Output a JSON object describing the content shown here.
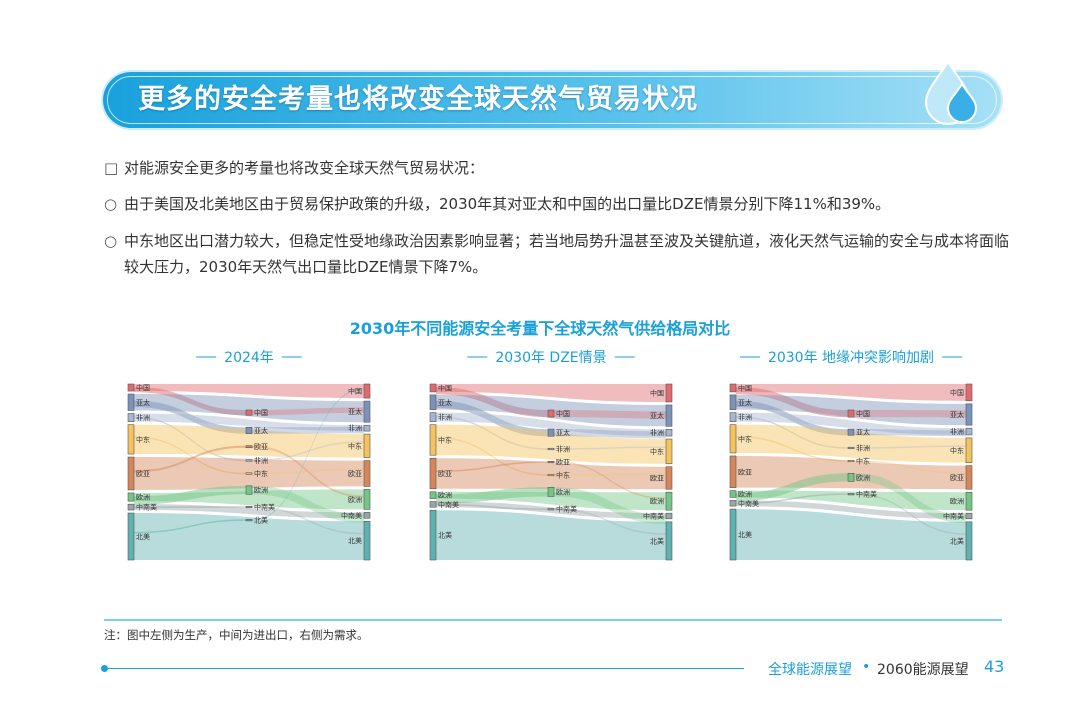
{
  "header": {
    "title": "更多的安全考量也将改变全球天然气贸易状况"
  },
  "bullets": [
    {
      "marker": "□",
      "text": "对能源安全更多的考量也将改变全球天然气贸易状况："
    },
    {
      "marker": "○",
      "text": "由于美国及北美地区由于贸易保护政策的升级，2030年其对亚太和中国的出口量比DZE情景分别下降11%和39%。"
    },
    {
      "marker": "○",
      "text": "中东地区出口潜力较大，但稳定性受地缘政治因素影响显著；若当地局势升温甚至波及关键航道，液化天然气运输的安全与成本将面临较大压力，2030年天然气出口量比DZE情景下降7%。"
    }
  ],
  "figure": {
    "title": "2030年不同能源安全考量下全球天然气供给格局对比",
    "colors": {
      "中国": "#e06a6e",
      "亚太": "#7d92b8",
      "非洲": "#a7b5d0",
      "中东": "#f4c35e",
      "欧亚": "#d5875b",
      "欧洲": "#74c586",
      "中南美": "#98a7a8",
      "北美": "#5fb2b0"
    },
    "panels": [
      {
        "title": "2024年",
        "left": [
          {
            "label": "中国",
            "value": 6
          },
          {
            "label": "亚太",
            "value": 14
          },
          {
            "label": "非洲",
            "value": 7
          },
          {
            "label": "中东",
            "value": 25
          },
          {
            "label": "欧亚",
            "value": 28
          },
          {
            "label": "欧洲",
            "value": 7
          },
          {
            "label": "中南美",
            "value": 5
          },
          {
            "label": "北美",
            "value": 40
          }
        ],
        "middle": [
          {
            "label": "中国",
            "value": 5
          },
          {
            "label": "亚太",
            "value": 6
          },
          {
            "label": "欧亚",
            "value": 2
          },
          {
            "label": "非洲",
            "value": 1
          },
          {
            "label": "中东",
            "value": 1
          },
          {
            "label": "欧洲",
            "value": 8
          },
          {
            "label": "中南美",
            "value": 1
          },
          {
            "label": "北美",
            "value": 1
          }
        ],
        "right": [
          {
            "label": "中国",
            "value": 12
          },
          {
            "label": "亚太",
            "value": 18
          },
          {
            "label": "非洲",
            "value": 5
          },
          {
            "label": "中东",
            "value": 20
          },
          {
            "label": "欧亚",
            "value": 22
          },
          {
            "label": "欧洲",
            "value": 17
          },
          {
            "label": "中南美",
            "value": 5
          },
          {
            "label": "北美",
            "value": 33
          }
        ]
      },
      {
        "title": "2030年 DZE情景",
        "left": [
          {
            "label": "中国",
            "value": 7
          },
          {
            "label": "亚太",
            "value": 13
          },
          {
            "label": "非洲",
            "value": 8
          },
          {
            "label": "中东",
            "value": 27
          },
          {
            "label": "欧亚",
            "value": 27
          },
          {
            "label": "欧洲",
            "value": 6
          },
          {
            "label": "中南美",
            "value": 5
          },
          {
            "label": "北美",
            "value": 44
          }
        ],
        "middle": [
          {
            "label": "中国",
            "value": 7
          },
          {
            "label": "亚太",
            "value": 7
          },
          {
            "label": "非洲",
            "value": 1
          },
          {
            "label": "欧亚",
            "value": 1
          },
          {
            "label": "中东",
            "value": 1
          },
          {
            "label": "欧洲",
            "value": 9
          },
          {
            "label": "中南美",
            "value": 1
          }
        ],
        "right": [
          {
            "label": "中国",
            "value": 16
          },
          {
            "label": "亚太",
            "value": 19
          },
          {
            "label": "非洲",
            "value": 6
          },
          {
            "label": "中东",
            "value": 22
          },
          {
            "label": "欧亚",
            "value": 20
          },
          {
            "label": "欧洲",
            "value": 16
          },
          {
            "label": "中南美",
            "value": 5
          },
          {
            "label": "北美",
            "value": 34
          }
        ]
      },
      {
        "title": "2030年 地缘冲突影响加剧",
        "left": [
          {
            "label": "中国",
            "value": 7
          },
          {
            "label": "亚太",
            "value": 13
          },
          {
            "label": "非洲",
            "value": 8
          },
          {
            "label": "中东",
            "value": 25
          },
          {
            "label": "欧亚",
            "value": 28
          },
          {
            "label": "欧洲",
            "value": 6
          },
          {
            "label": "中南美",
            "value": 5
          },
          {
            "label": "北美",
            "value": 45
          }
        ],
        "middle": [
          {
            "label": "中国",
            "value": 7
          },
          {
            "label": "亚太",
            "value": 6
          },
          {
            "label": "非洲",
            "value": 1
          },
          {
            "label": "中东",
            "value": 1
          },
          {
            "label": "欧洲",
            "value": 8
          },
          {
            "label": "中南美",
            "value": 1
          }
        ],
        "right": [
          {
            "label": "中国",
            "value": 15
          },
          {
            "label": "亚太",
            "value": 19
          },
          {
            "label": "非洲",
            "value": 6
          },
          {
            "label": "中东",
            "value": 22
          },
          {
            "label": "欧亚",
            "value": 21
          },
          {
            "label": "欧洲",
            "value": 16
          },
          {
            "label": "中南美",
            "value": 5
          },
          {
            "label": "北美",
            "value": 34
          }
        ]
      }
    ]
  },
  "note": "注：图中左侧为生产，中间为进出口，右侧为需求。",
  "footer": {
    "left": "全球能源展望",
    "right": "2060能源展望",
    "page": 43
  }
}
